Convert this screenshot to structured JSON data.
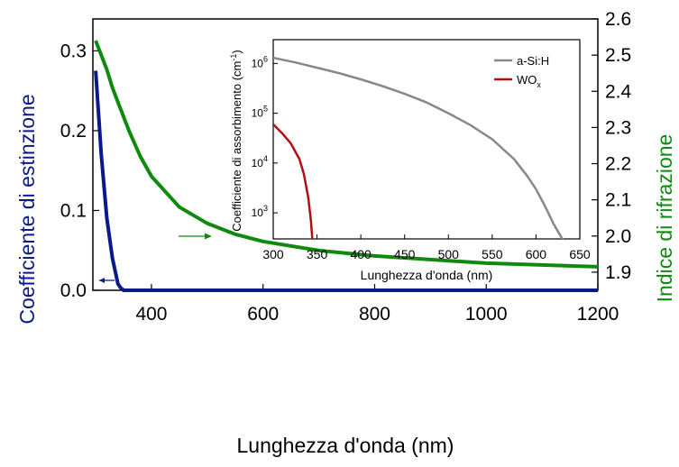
{
  "chart_data": [
    {
      "type": "line",
      "xlabel": "Lunghezza d'onda (nm)",
      "ylabel_left": "Coefficiente di estinzione",
      "ylabel_right": "Indice di rifrazione",
      "xlim": [
        295,
        1200
      ],
      "ylim_left": [
        0,
        0.34
      ],
      "ylim_right": [
        1.85,
        2.6
      ],
      "x_ticks": [
        400,
        600,
        800,
        1000,
        1200
      ],
      "y_left_ticks": [
        "0.0",
        "0.1",
        "0.2",
        "0.3"
      ],
      "y_right_ticks": [
        "1.9",
        "2.0",
        "2.1",
        "2.2",
        "2.3",
        "2.4",
        "2.5",
        "2.6"
      ],
      "grid": false,
      "series": [
        {
          "axis": "left",
          "color": "#0a1a8a",
          "x": [
            300,
            310,
            320,
            330,
            340,
            345,
            350,
            360,
            400,
            600,
            800,
            1000,
            1200
          ],
          "values": [
            0.275,
            0.17,
            0.09,
            0.04,
            0.008,
            0.003,
            0.0,
            0.0,
            0.0,
            0.0,
            0.0,
            0.0,
            0.0
          ]
        },
        {
          "axis": "right",
          "color": "#0f8a0f",
          "x": [
            300,
            310,
            320,
            330,
            340,
            360,
            380,
            400,
            450,
            500,
            550,
            600,
            700,
            800,
            900,
            1000,
            1100,
            1200
          ],
          "values": [
            2.54,
            2.5,
            2.46,
            2.41,
            2.37,
            2.29,
            2.22,
            2.165,
            2.08,
            2.035,
            2.005,
            1.985,
            1.96,
            1.945,
            1.935,
            1.925,
            1.92,
            1.915
          ]
        }
      ]
    },
    {
      "type": "line",
      "xlabel": "Lunghezza d'onda (nm)",
      "ylabel": "Coefficiente di assorbimento (cm",
      "ylabel_sup": "-1",
      "ylabel_end": ")",
      "yscale": "log",
      "xlim": [
        300,
        650
      ],
      "ylim": [
        300,
        3000000
      ],
      "x_ticks": [
        300,
        350,
        400,
        450,
        500,
        550,
        600,
        650
      ],
      "y_ticks": [
        1000,
        10000,
        100000,
        1000000
      ],
      "y_tick_base": "10",
      "y_tick_exponents": [
        "3",
        "4",
        "5",
        "6"
      ],
      "legend_position": "top-right",
      "series": [
        {
          "name": "a-Si:H",
          "color": "#888888",
          "x": [
            300,
            325,
            350,
            375,
            400,
            425,
            450,
            475,
            500,
            525,
            550,
            575,
            590,
            600,
            610,
            620,
            630,
            637
          ],
          "values": [
            1300000,
            1050000,
            820000,
            640000,
            480000,
            350000,
            245000,
            165000,
            100000,
            58000,
            30000,
            12000,
            5500,
            3000,
            1400,
            600,
            300,
            150
          ]
        },
        {
          "name": "WO",
          "name_sub": "x",
          "color": "#b01010",
          "x": [
            300,
            310,
            320,
            330,
            335,
            340,
            343,
            345
          ],
          "values": [
            60000,
            40000,
            25000,
            12000,
            6000,
            2000,
            700,
            250
          ]
        }
      ]
    }
  ]
}
